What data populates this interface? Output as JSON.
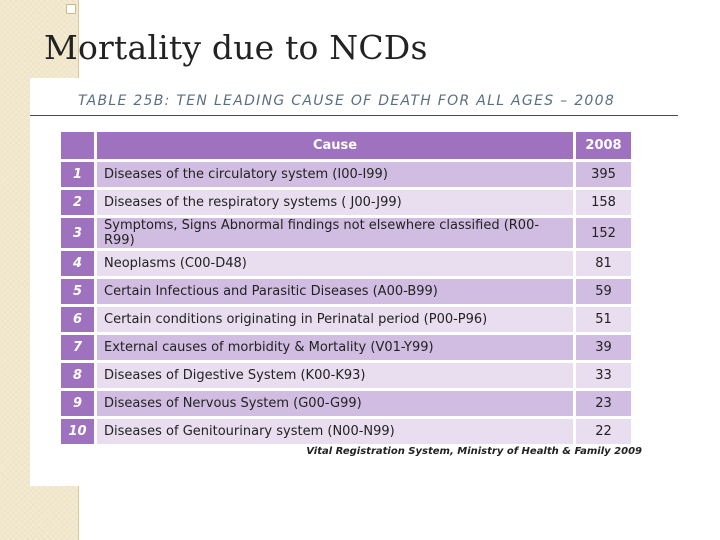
{
  "slide": {
    "title": "Mortality due to NCDs"
  },
  "table": {
    "caption": "TABLE 25B: TEN LEADING CAUSE OF DEATH FOR ALL AGES –  2008",
    "header_cause": "Cause",
    "header_year": "2008",
    "rows": [
      {
        "rank": "1",
        "cause": "Diseases of the circulatory system (I00-I99)",
        "value": "395"
      },
      {
        "rank": "2",
        "cause": "Diseases of the respiratory systems ( J00-J99)",
        "value": "158"
      },
      {
        "rank": "3",
        "cause": "Symptoms, Signs Abnormal findings not elsewhere classified (R00-R99)",
        "value": "152"
      },
      {
        "rank": "4",
        "cause": "Neoplasms (C00-D48)",
        "value": "81"
      },
      {
        "rank": "5",
        "cause": "Certain Infectious and Parasitic Diseases (A00-B99)",
        "value": "59"
      },
      {
        "rank": "6",
        "cause": "Certain conditions originating in Perinatal period (P00-P96)",
        "value": "51"
      },
      {
        "rank": "7",
        "cause": "External causes of morbidity & Mortality (V01-Y99)",
        "value": "39"
      },
      {
        "rank": "8",
        "cause": "Diseases of Digestive System (K00-K93)",
        "value": "33"
      },
      {
        "rank": "9",
        "cause": "Diseases of Nervous System (G00-G99)",
        "value": "23"
      },
      {
        "rank": "10",
        "cause": "Diseases of Genitourinary system (N00-N99)",
        "value": "22"
      }
    ],
    "source": "Vital Registration System, Ministry of Health & Family  2009"
  },
  "colors": {
    "header_purple": "#9e72bf",
    "row_dark": "#d2bde2",
    "row_light": "#e8def0",
    "band": "#f3ead1"
  }
}
